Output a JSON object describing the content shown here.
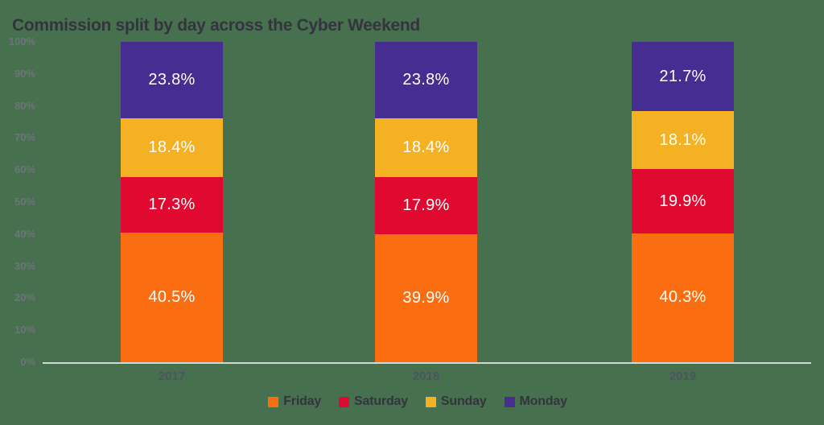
{
  "title": "Commission split by day across the Cyber Weekend",
  "colors": {
    "background": "#47704E",
    "title_text": "#34343E",
    "tick_text": "#6C7679",
    "year_text": "#4F5460",
    "value_text": "#FFFFFF",
    "axis_line": "#D4D8D2",
    "legend_text": "#34343E"
  },
  "chart_data": {
    "type": "bar",
    "stacked": true,
    "title": "Commission split by day across the Cyber Weekend",
    "categories": [
      "2017",
      "2018",
      "2019"
    ],
    "series": [
      {
        "name": "Friday",
        "color": "#FA6E11",
        "values": [
          40.5,
          39.9,
          40.3
        ]
      },
      {
        "name": "Saturday",
        "color": "#E00A31",
        "values": [
          17.3,
          17.9,
          19.9
        ]
      },
      {
        "name": "Sunday",
        "color": "#F4B123",
        "values": [
          18.4,
          18.4,
          18.1
        ]
      },
      {
        "name": "Monday",
        "color": "#452D91",
        "values": [
          23.8,
          23.8,
          21.7
        ]
      }
    ],
    "stack_order_bottom_to_top": [
      "Friday",
      "Saturday",
      "Sunday",
      "Monday"
    ],
    "ylim": [
      0,
      100
    ],
    "yticks": [
      "100%",
      "90%",
      "80%",
      "70%",
      "60%",
      "50%",
      "40%",
      "30%",
      "20%",
      "10%",
      "0%"
    ],
    "value_label_suffix": "%",
    "legend": [
      "Friday",
      "Saturday",
      "Sunday",
      "Monday"
    ],
    "legend_position": "bottom",
    "grid": false
  }
}
